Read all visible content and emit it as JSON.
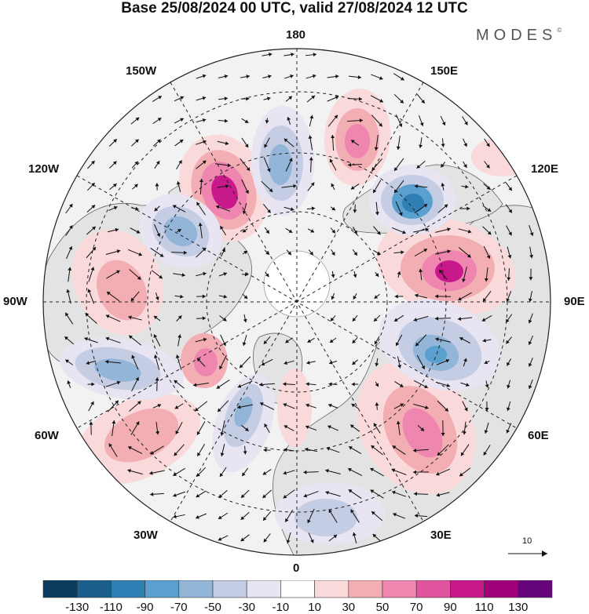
{
  "title": "Base 25/08/2024 00 UTC, valid 27/08/2024 12 UTC",
  "brand": {
    "name": "MODES",
    "mark": "©"
  },
  "longitude_labels": {
    "lon_180": "180",
    "lon_150w": "150W",
    "lon_150e": "150E",
    "lon_120w": "120W",
    "lon_120e": "120E",
    "lon_90w": "90W",
    "lon_90e": "90E",
    "lon_60w": "60W",
    "lon_60e": "60E",
    "lon_30w": "30W",
    "lon_30e": "30E",
    "lon_0": "0"
  },
  "reference_vector": {
    "label": "10"
  },
  "colorbar": {
    "colors": [
      "#0b3c5d",
      "#1a5f8c",
      "#2f7fb5",
      "#5aa0cf",
      "#93b6d8",
      "#c4cde3",
      "#e8e4f1",
      "#ffffff",
      "#f9d9da",
      "#f3aeb4",
      "#ee86b0",
      "#e0559e",
      "#c8198a",
      "#a0007a",
      "#66047a"
    ],
    "ticks": [
      "-130",
      "-110",
      "-90",
      "-70",
      "-50",
      "-30",
      "-10",
      "10",
      "30",
      "50",
      "70",
      "90",
      "110",
      "130"
    ]
  },
  "map_colors": {
    "land": "#e3e3e3",
    "ocean": "#f2f2f2",
    "coast": "#666666",
    "grid": "#222222"
  }
}
